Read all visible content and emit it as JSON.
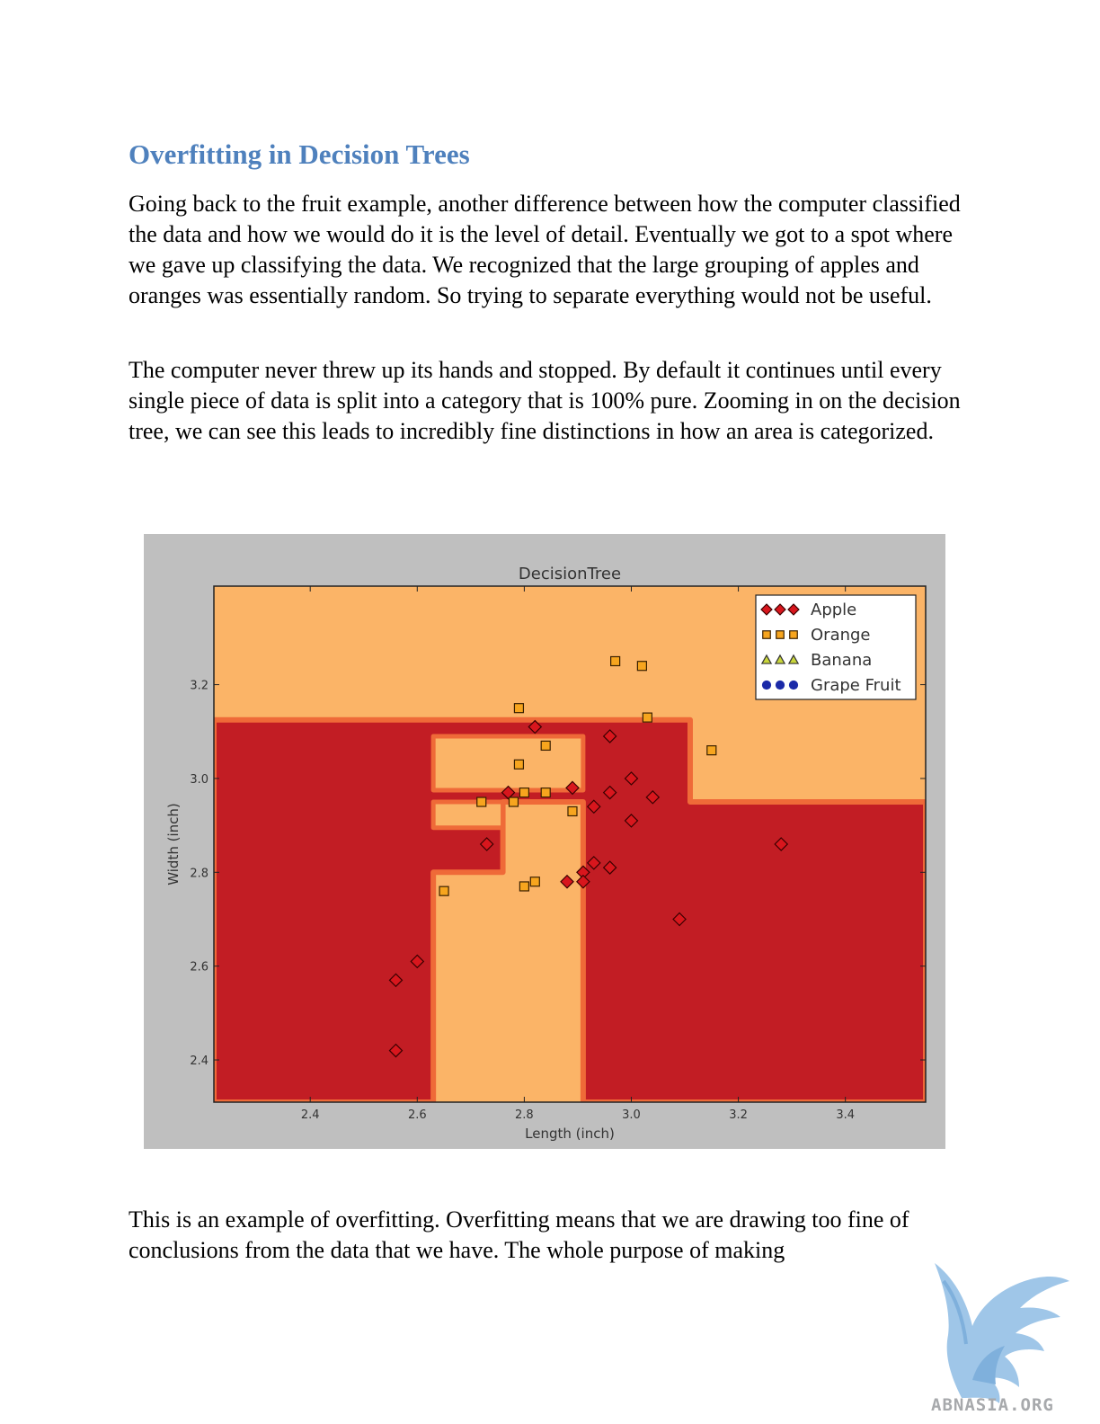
{
  "document": {
    "heading": "Overfitting in Decision Trees",
    "paragraph_1": "Going back to the fruit example, another difference between how the computer classified the data and how we would do it is the level of detail.  Eventually we got to a spot where we gave up classifying the data.  We recognized that the large grouping of apples and oranges was essentially random.  So trying to separate everything would not be useful.",
    "paragraph_2": "The computer never threw up its hands and stopped.  By default it continues until every single piece of data is split into a category that is 100% pure.  Zooming in on the decision tree, we can see this leads to incredibly fine distinctions in how an area is categorized.",
    "paragraph_3": "This is an example of overfitting.  Overfitting means that we are drawing too fine of conclusions from the data that we have.  The whole purpose of making"
  },
  "watermark": {
    "text": "ABNASIA.ORG"
  },
  "colors": {
    "apple_region": "#c21d24",
    "orange_region": "#fbb467",
    "region_border": "#ef6a38",
    "apple_marker": "#d8161d",
    "orange_marker": "#f7a51e",
    "banana_marker": "#c9d63b",
    "grape_marker": "#1b2aa8",
    "heading": "#4f81bd"
  },
  "chart_data": {
    "type": "scatter",
    "title": "DecisionTree",
    "xlabel": "Length (inch)",
    "ylabel": "Width (inch)",
    "xlim": [
      2.22,
      3.55
    ],
    "ylim": [
      2.31,
      3.41
    ],
    "xticks": [
      2.4,
      2.6,
      2.8,
      3.0,
      3.2,
      3.4
    ],
    "yticks": [
      2.4,
      2.6,
      2.8,
      3.0,
      3.2
    ],
    "xtick_labels": [
      "2.4",
      "2.6",
      "2.8",
      "3.0",
      "3.2",
      "3.4"
    ],
    "ytick_labels": [
      "2.4",
      "2.6",
      "2.8",
      "3.0",
      "3.2"
    ],
    "legend_position": "top-right",
    "series": [
      {
        "name": "Apple",
        "marker": "diamond",
        "points": [
          [
            2.56,
            2.57
          ],
          [
            2.6,
            2.61
          ],
          [
            2.56,
            2.42
          ],
          [
            2.73,
            2.86
          ],
          [
            2.77,
            2.97
          ],
          [
            2.82,
            3.11
          ],
          [
            2.89,
            2.98
          ],
          [
            2.96,
            3.09
          ],
          [
            2.93,
            2.94
          ],
          [
            2.96,
            2.97
          ],
          [
            3.0,
            3.0
          ],
          [
            3.04,
            2.96
          ],
          [
            3.0,
            2.91
          ],
          [
            2.88,
            2.78
          ],
          [
            2.91,
            2.8
          ],
          [
            2.91,
            2.78
          ],
          [
            2.93,
            2.82
          ],
          [
            2.96,
            2.81
          ],
          [
            3.09,
            2.7
          ],
          [
            3.28,
            2.86
          ]
        ]
      },
      {
        "name": "Orange",
        "marker": "square",
        "points": [
          [
            2.65,
            2.76
          ],
          [
            2.72,
            2.95
          ],
          [
            2.78,
            2.95
          ],
          [
            2.79,
            3.03
          ],
          [
            2.8,
            2.97
          ],
          [
            2.79,
            3.15
          ],
          [
            2.84,
            3.07
          ],
          [
            2.84,
            2.97
          ],
          [
            2.89,
            2.93
          ],
          [
            2.8,
            2.77
          ],
          [
            2.82,
            2.78
          ],
          [
            2.97,
            3.25
          ],
          [
            3.02,
            3.24
          ],
          [
            3.03,
            3.13
          ],
          [
            3.15,
            3.06
          ]
        ]
      },
      {
        "name": "Banana",
        "marker": "triangle",
        "points": []
      },
      {
        "name": "Grape Fruit",
        "marker": "circle",
        "points": []
      }
    ],
    "regions": {
      "background_class": "Orange",
      "apple_polygons": [
        [
          [
            2.22,
            2.31
          ],
          [
            2.63,
            2.31
          ],
          [
            2.63,
            2.8
          ],
          [
            2.76,
            2.8
          ],
          [
            2.76,
            2.95
          ],
          [
            2.91,
            2.95
          ],
          [
            2.91,
            2.31
          ],
          [
            3.55,
            2.31
          ],
          [
            3.55,
            2.95
          ],
          [
            3.11,
            2.95
          ],
          [
            3.11,
            3.125
          ],
          [
            2.22,
            3.125
          ]
        ]
      ],
      "orange_polygons": [
        [
          [
            2.63,
            2.975
          ],
          [
            2.91,
            2.975
          ],
          [
            2.91,
            3.09
          ],
          [
            2.63,
            3.09
          ]
        ],
        [
          [
            2.63,
            2.895
          ],
          [
            2.76,
            2.895
          ],
          [
            2.76,
            2.95
          ],
          [
            2.63,
            2.95
          ]
        ]
      ]
    }
  }
}
